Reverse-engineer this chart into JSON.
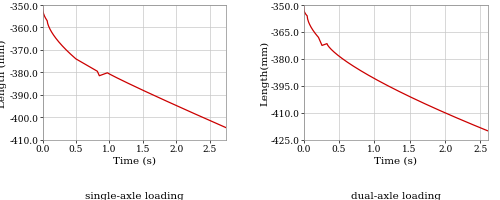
{
  "left": {
    "title": "single-axle loading",
    "xlabel": "Time (s)",
    "ylabel": "Length (mm)",
    "xlim": [
      0,
      2.75
    ],
    "ylim": [
      -410,
      -350
    ],
    "yticks": [
      -410,
      -400,
      -390,
      -380,
      -370,
      -360,
      -350
    ],
    "xticks": [
      0.0,
      0.5,
      1.0,
      1.5,
      2.0,
      2.5
    ],
    "line_color": "#cc0000"
  },
  "right": {
    "title": "dual-axle loading",
    "xlabel": "Time (s)",
    "ylabel": "Length(mm)",
    "xlim": [
      0,
      2.6
    ],
    "ylim": [
      -425,
      -350
    ],
    "yticks": [
      -425,
      -410,
      -395,
      -380,
      -365,
      -350
    ],
    "xticks": [
      0.0,
      0.5,
      1.0,
      1.5,
      2.0,
      2.5
    ],
    "line_color": "#cc0000"
  },
  "background_color": "#ffffff",
  "grid_color": "#c8c8c8",
  "tick_fontsize": 6.5,
  "label_fontsize": 7.5,
  "title_fontsize": 7.5
}
